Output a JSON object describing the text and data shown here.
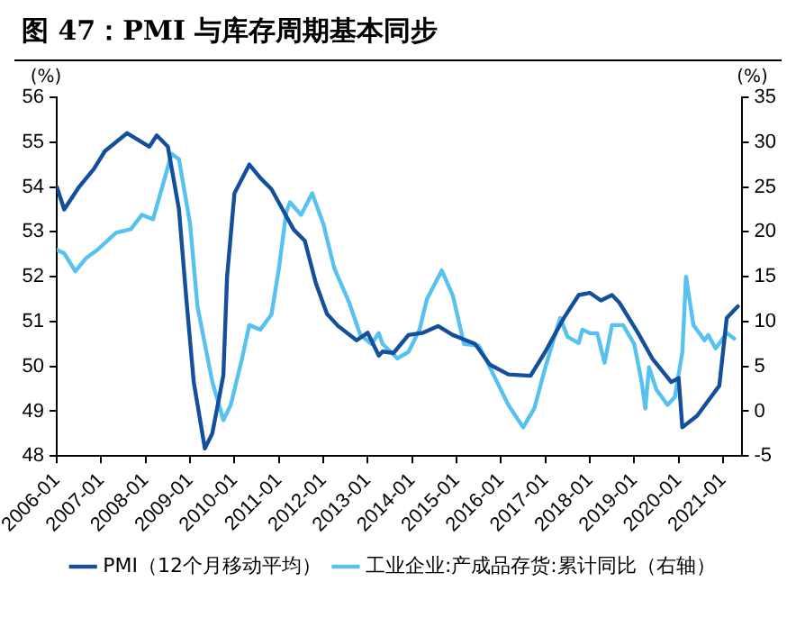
{
  "chart_data": {
    "type": "line",
    "title": "图 47：PMI 与库存周期基本同步",
    "ylabel": "(%)",
    "y2label": "(%)",
    "xlim": [
      "2006-01",
      "2021-06"
    ],
    "xticks": [
      "2006-01",
      "2007-01",
      "2008-01",
      "2009-01",
      "2010-01",
      "2011-01",
      "2012-01",
      "2013-01",
      "2014-01",
      "2015-01",
      "2016-01",
      "2017-01",
      "2018-01",
      "2019-01",
      "2020-01",
      "2021-01"
    ],
    "ylim": [
      48,
      56
    ],
    "yticks": [
      48,
      49,
      50,
      51,
      52,
      53,
      54,
      55,
      56
    ],
    "y2lim": [
      -5,
      35
    ],
    "y2ticks": [
      -5,
      0,
      5,
      10,
      15,
      20,
      25,
      30,
      35
    ],
    "legend": "bottom",
    "marker": "none",
    "line_style": "solid",
    "series": [
      {
        "name": "PMI（12个月移动平均）",
        "color": "#134f9b",
        "x": [
          "2006-01",
          "2006-03",
          "2006-07",
          "2006-11",
          "2007-02",
          "2007-08",
          "2007-12",
          "2008-02",
          "2008-04",
          "2008-07",
          "2008-10",
          "2008-12",
          "2009-02",
          "2009-05",
          "2009-07",
          "2009-10",
          "2009-11",
          "2010-01",
          "2010-05",
          "2010-08",
          "2010-11",
          "2011-02",
          "2011-05",
          "2011-08",
          "2011-11",
          "2012-02",
          "2012-05",
          "2012-10",
          "2013-01",
          "2013-04",
          "2013-05",
          "2013-08",
          "2013-12",
          "2014-04",
          "2014-08",
          "2014-12",
          "2015-06",
          "2015-10",
          "2016-03",
          "2016-09",
          "2017-01",
          "2017-06",
          "2017-10",
          "2018-01",
          "2018-04",
          "2018-07",
          "2018-09",
          "2019-02",
          "2019-06",
          "2019-11",
          "2020-01",
          "2020-02",
          "2020-06",
          "2020-12",
          "2021-02",
          "2021-05"
        ],
        "values": [
          54.0,
          53.5,
          54.0,
          54.4,
          54.8,
          55.2,
          55.0,
          54.9,
          55.15,
          54.9,
          53.5,
          51.5,
          49.65,
          48.17,
          48.5,
          49.8,
          52.0,
          53.86,
          54.5,
          54.2,
          53.95,
          53.5,
          53.05,
          52.8,
          51.85,
          51.17,
          50.9,
          50.58,
          50.75,
          50.24,
          50.33,
          50.3,
          50.7,
          50.75,
          50.9,
          50.7,
          50.5,
          50.04,
          49.82,
          49.79,
          50.33,
          51.08,
          51.59,
          51.64,
          51.47,
          51.59,
          51.42,
          50.75,
          50.16,
          49.65,
          49.74,
          48.64,
          48.9,
          49.57,
          51.08,
          51.34
        ]
      },
      {
        "name": "工业企业:产成品存货:累计同比（右轴）",
        "color": "#57c1ef",
        "axis": "y2",
        "x": [
          "2006-01",
          "2006-03",
          "2006-06",
          "2006-09",
          "2006-12",
          "2007-05",
          "2007-09",
          "2007-12",
          "2008-03",
          "2008-05",
          "2008-08",
          "2008-10",
          "2009-01",
          "2009-03",
          "2009-07",
          "2009-10",
          "2009-12",
          "2010-03",
          "2010-05",
          "2010-08",
          "2010-11",
          "2011-01",
          "2011-03",
          "2011-04",
          "2011-07",
          "2011-10",
          "2012-01",
          "2012-04",
          "2012-08",
          "2012-11",
          "2013-02",
          "2013-04",
          "2013-05",
          "2013-09",
          "2013-12",
          "2014-03",
          "2014-05",
          "2014-09",
          "2014-12",
          "2015-03",
          "2015-07",
          "2015-10",
          "2016-03",
          "2016-07",
          "2016-10",
          "2017-01",
          "2017-05",
          "2017-07",
          "2017-10",
          "2017-11",
          "2018-01",
          "2018-03",
          "2018-05",
          "2018-07",
          "2018-10",
          "2019-01",
          "2019-03",
          "2019-04",
          "2019-05",
          "2019-07",
          "2019-10",
          "2019-12",
          "2020-02",
          "2020-03",
          "2020-05",
          "2020-08",
          "2020-09",
          "2020-11",
          "2021-02",
          "2021-04"
        ],
        "values": [
          18.0,
          17.6,
          15.6,
          17.1,
          18.0,
          19.9,
          20.3,
          21.9,
          21.4,
          24.3,
          28.7,
          28.1,
          20.9,
          11.7,
          3.3,
          -1.0,
          0.7,
          5.8,
          9.6,
          9.1,
          10.8,
          15.9,
          22.2,
          23.3,
          21.9,
          24.3,
          20.9,
          15.9,
          12.1,
          8.5,
          7.5,
          8.7,
          7.5,
          5.9,
          6.6,
          9.1,
          12.5,
          15.7,
          12.9,
          7.5,
          7.3,
          4.9,
          0.7,
          -1.8,
          0.3,
          4.9,
          10.4,
          8.3,
          7.6,
          9.1,
          8.7,
          8.7,
          5.4,
          9.6,
          9.6,
          7.5,
          3.3,
          0.3,
          4.9,
          2.4,
          0.7,
          1.6,
          6.6,
          15.0,
          9.6,
          7.9,
          8.5,
          7.0,
          8.7,
          8.1
        ]
      }
    ]
  }
}
